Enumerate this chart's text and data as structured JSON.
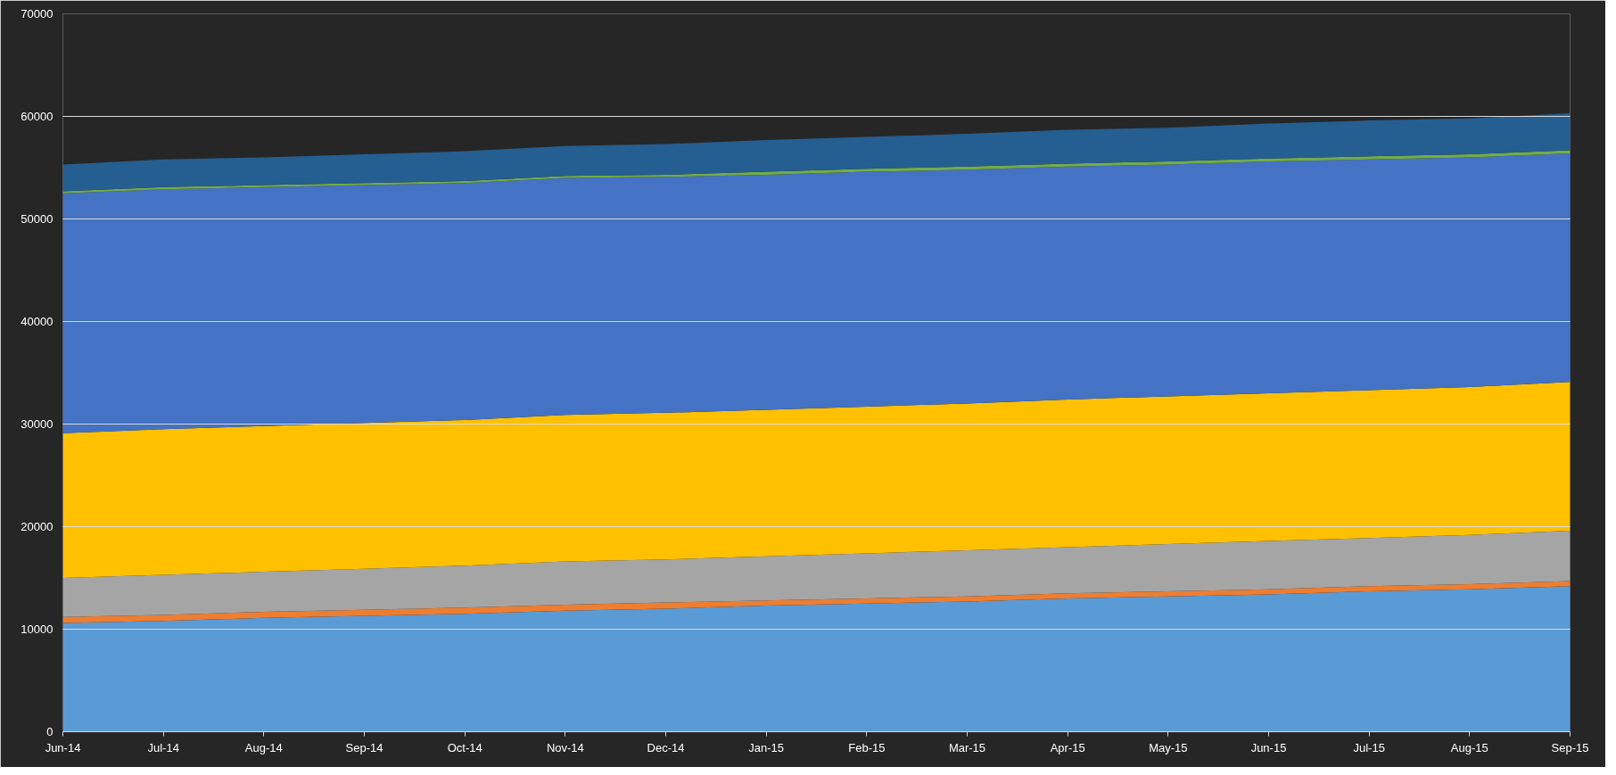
{
  "chart_data": {
    "type": "area",
    "stacked": true,
    "grid": "y",
    "categories": [
      "Jun-14",
      "Jul-14",
      "Aug-14",
      "Sep-14",
      "Oct-14",
      "Nov-14",
      "Dec-14",
      "Jan-15",
      "Feb-15",
      "Mar-15",
      "Apr-15",
      "May-15",
      "Jun-15",
      "Jul-15",
      "Aug-15",
      "Sep-15"
    ],
    "ylim": [
      0,
      70000
    ],
    "yticks": [
      0,
      10000,
      20000,
      30000,
      40000,
      50000,
      60000,
      70000
    ],
    "series": [
      {
        "color": "#5b9bd5",
        "values": [
          10600,
          10800,
          11100,
          11300,
          11500,
          11800,
          12000,
          12300,
          12500,
          12700,
          13000,
          13200,
          13400,
          13700,
          13900,
          14200
        ]
      },
      {
        "color": "#ed7d31",
        "values": [
          600,
          600,
          600,
          600,
          600,
          600,
          600,
          500,
          500,
          500,
          500,
          500,
          500,
          500,
          500,
          500
        ]
      },
      {
        "color": "#a5a5a5",
        "values": [
          3800,
          3900,
          3900,
          4000,
          4100,
          4200,
          4200,
          4300,
          4400,
          4500,
          4500,
          4600,
          4700,
          4700,
          4800,
          4900
        ]
      },
      {
        "color": "#ffc000",
        "values": [
          14100,
          14200,
          14200,
          14200,
          14200,
          14300,
          14300,
          14300,
          14300,
          14300,
          14400,
          14400,
          14400,
          14400,
          14400,
          14500
        ]
      },
      {
        "color": "#4472c4",
        "values": [
          23400,
          23400,
          23300,
          23200,
          23100,
          23100,
          23000,
          22900,
          22900,
          22800,
          22700,
          22600,
          22600,
          22500,
          22400,
          22300
        ]
      },
      {
        "color": "#70ad47",
        "values": [
          200,
          200,
          200,
          200,
          200,
          200,
          200,
          300,
          300,
          300,
          300,
          300,
          300,
          300,
          300,
          300
        ]
      },
      {
        "color": "#255e91",
        "values": [
          2600,
          2700,
          2700,
          2800,
          2900,
          2900,
          3000,
          3100,
          3100,
          3200,
          3300,
          3300,
          3400,
          3500,
          3500,
          3600
        ]
      }
    ]
  }
}
